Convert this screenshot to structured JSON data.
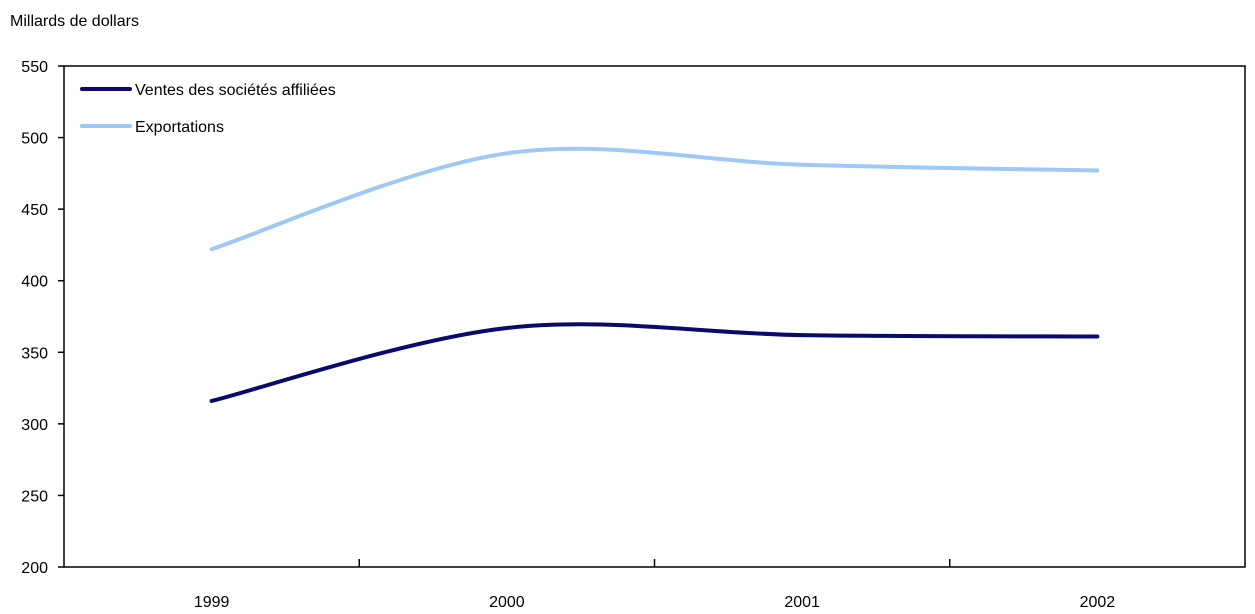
{
  "chart_data": {
    "type": "line",
    "title": "",
    "xlabel": "",
    "ylabel": "Millards de dollars",
    "categories": [
      "1999",
      "2000",
      "2001",
      "2002"
    ],
    "ylim": [
      200,
      550
    ],
    "yticks": [
      200,
      250,
      300,
      350,
      400,
      450,
      500,
      550
    ],
    "grid": false,
    "legend_position": "top-left",
    "series": [
      {
        "name": "Ventes des sociétés affiliées",
        "color": "#0a0a6e",
        "values": [
          316,
          367,
          362,
          361
        ]
      },
      {
        "name": "Exportations",
        "color": "#9ec8f6",
        "values": [
          422,
          489,
          481,
          477
        ]
      }
    ]
  }
}
